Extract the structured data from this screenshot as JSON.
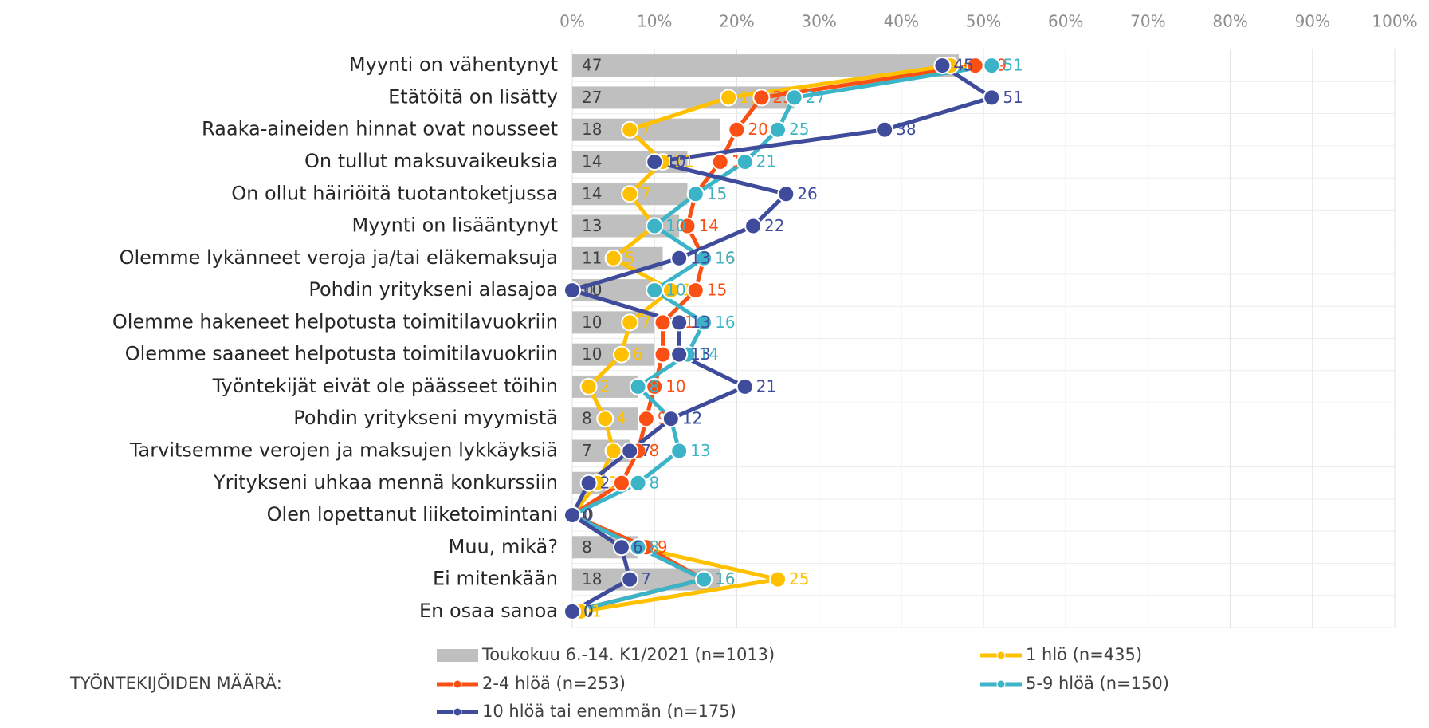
{
  "chart_data": {
    "type": "combo",
    "orientation": "horizontal",
    "categories": [
      "Myynti on vähentynyt",
      "Etätöitä on lisätty",
      "Raaka-aineiden hinnat ovat nousseet",
      "On tullut maksuvaikeuksia",
      "On ollut häiriöitä tuotantoketjussa",
      "Myynti on lisääntynyt",
      "Olemme lykänneet veroja ja/tai eläkemaksuja",
      "Pohdin yritykseni alasajoa",
      "Olemme hakeneet helpotusta toimitilavuokriin",
      "Olemme saaneet helpotusta toimitilavuokriin",
      "Työntekijät eivät ole päässeet töihin",
      "Pohdin yritykseni myymistä",
      "Tarvitsemme verojen ja maksujen lykkäyksiä",
      "Yritykseni uhkaa mennä konkurssiin",
      "Olen lopettanut liiketoimintani",
      "Muu, mikä?",
      "Ei mitenkään",
      "En osaa sanoa"
    ],
    "series": [
      {
        "name": "Toukokuu 6.-14. K1/2021 (n=1013)",
        "type": "bar",
        "color": "#bfbfbf",
        "values": [
          47,
          27,
          18,
          14,
          14,
          13,
          11,
          10,
          10,
          10,
          8,
          8,
          7,
          4,
          0,
          8,
          18,
          0
        ]
      },
      {
        "name": "1 hlö (n=435)",
        "type": "line",
        "color": "#ffc000",
        "values": [
          46,
          19,
          7,
          11,
          7,
          10,
          5,
          12,
          7,
          6,
          2,
          4,
          5,
          3,
          0,
          8,
          25,
          1
        ]
      },
      {
        "name": "2-4 hlöä (n=253)",
        "type": "line",
        "color": "#fa5014",
        "values": [
          49,
          23,
          20,
          18,
          15,
          14,
          16,
          15,
          11,
          11,
          10,
          9,
          8,
          6,
          0,
          9,
          16,
          0
        ]
      },
      {
        "name": "5-9 hlöä (n=150)",
        "type": "line",
        "color": "#3cb4c8",
        "values": [
          51,
          27,
          25,
          21,
          15,
          10,
          16,
          10,
          16,
          14,
          8,
          12,
          13,
          8,
          0,
          8,
          16,
          0
        ]
      },
      {
        "name": "10 hlöä tai enemmän (n=175)",
        "type": "line",
        "color": "#3f4c9c",
        "values": [
          45,
          51,
          38,
          10,
          26,
          22,
          13,
          0,
          13,
          13,
          21,
          12,
          7,
          2,
          0,
          6,
          7,
          0
        ]
      }
    ],
    "xlim": [
      0,
      100
    ],
    "xticks": [
      {
        "value": 0,
        "label": "0%"
      },
      {
        "value": 10,
        "label": "10%"
      },
      {
        "value": 20,
        "label": "20%"
      },
      {
        "value": 30,
        "label": "30%"
      },
      {
        "value": 40,
        "label": "40%"
      },
      {
        "value": 50,
        "label": "50%"
      },
      {
        "value": 60,
        "label": "60%"
      },
      {
        "value": 70,
        "label": "70%"
      },
      {
        "value": 80,
        "label": "80%"
      },
      {
        "value": 90,
        "label": "90%"
      },
      {
        "value": 100,
        "label": "100%"
      }
    ],
    "grid": true,
    "legend_title": "TYÖNTEKIJÖIDEN MÄÄRÄ:",
    "legend": "bottom"
  }
}
